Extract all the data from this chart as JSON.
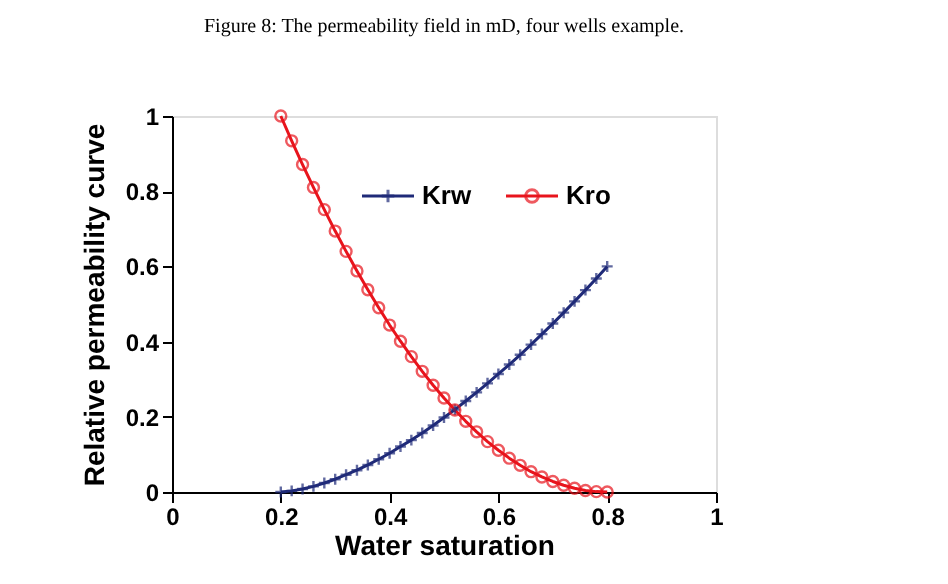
{
  "chart_data": {
    "type": "line",
    "title": "Figure 8: The permeability field in mD, four wells example.",
    "xlabel": "Water saturation",
    "ylabel": "Relative permeability curve",
    "x": [
      0.2,
      0.22,
      0.24,
      0.26,
      0.28,
      0.3,
      0.32,
      0.34,
      0.36,
      0.38,
      0.4,
      0.42,
      0.44,
      0.46,
      0.48,
      0.5,
      0.52,
      0.54,
      0.56,
      0.58,
      0.6,
      0.62,
      0.64,
      0.66,
      0.68,
      0.7,
      0.72,
      0.74,
      0.76,
      0.78,
      0.8
    ],
    "series": [
      {
        "name": "Krw",
        "color": "#1f2a78",
        "marker": "cross",
        "values": [
          0,
          0.003,
          0.008,
          0.015,
          0.024,
          0.034,
          0.046,
          0.058,
          0.072,
          0.087,
          0.103,
          0.121,
          0.138,
          0.157,
          0.177,
          0.198,
          0.219,
          0.242,
          0.265,
          0.289,
          0.314,
          0.339,
          0.365,
          0.392,
          0.42,
          0.448,
          0.477,
          0.507,
          0.537,
          0.568,
          0.6
        ]
      },
      {
        "name": "Kro",
        "color": "#e8141c",
        "marker": "circle",
        "values": [
          1,
          0.934,
          0.871,
          0.81,
          0.751,
          0.694,
          0.64,
          0.588,
          0.538,
          0.49,
          0.444,
          0.401,
          0.36,
          0.321,
          0.284,
          0.25,
          0.218,
          0.188,
          0.16,
          0.134,
          0.111,
          0.09,
          0.071,
          0.054,
          0.04,
          0.028,
          0.018,
          0.01,
          0.004,
          0.001,
          0
        ]
      }
    ],
    "xlim": [
      0,
      1
    ],
    "ylim": [
      0,
      1
    ],
    "xticks": [
      0,
      0.2,
      0.4,
      0.6,
      0.8,
      1
    ],
    "yticks": [
      0,
      0.2,
      0.4,
      0.6,
      0.8,
      1
    ],
    "grid": false,
    "legend": "top",
    "line_style": "solid"
  }
}
